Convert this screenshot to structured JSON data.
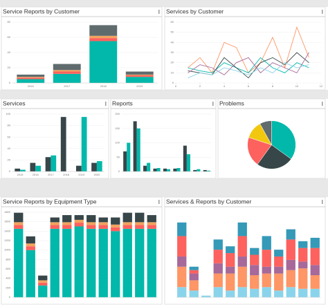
{
  "panels": [
    {
      "title": "Service Reports by Customer",
      "chart": {
        "type": "stacked_bar",
        "categories": [
          "2016",
          "2017",
          "2018",
          "2019"
        ],
        "ylim": [
          0,
          80
        ],
        "yticks": [
          0,
          20,
          40,
          60,
          80
        ],
        "series": [
          {
            "color": "#01b8aa",
            "values": [
              5,
              12,
              55,
              8
            ]
          },
          {
            "color": "#fd625e",
            "values": [
              2,
              3,
              4,
              2
            ]
          },
          {
            "color": "#f2a35e",
            "values": [
              1,
              2,
              3,
              1
            ]
          },
          {
            "color": "#5f6b6d",
            "values": [
              3,
              8,
              14,
              4
            ]
          }
        ]
      }
    },
    {
      "title": "Services by Customer",
      "chart": {
        "type": "line",
        "x": [
          1,
          2,
          3,
          4,
          5,
          6,
          7,
          8,
          9,
          10,
          11
        ],
        "xlim": [
          0,
          12
        ],
        "xticks": [
          0,
          2,
          4,
          6,
          8,
          10,
          12
        ],
        "ylim": [
          0,
          60
        ],
        "yticks": [
          0,
          10,
          20,
          30,
          40,
          50,
          60
        ],
        "series": [
          {
            "color": "#fe9666",
            "values": [
              15,
              25,
              10,
              40,
              35,
              10,
              20,
              45,
              15,
              55,
              25
            ]
          },
          {
            "color": "#01b8aa",
            "values": [
              15,
              12,
              10,
              20,
              15,
              10,
              25,
              15,
              10,
              20,
              15
            ]
          },
          {
            "color": "#374649",
            "values": [
              12,
              10,
              8,
              25,
              15,
              5,
              20,
              25,
              18,
              30,
              20
            ]
          },
          {
            "color": "#a66999",
            "values": [
              10,
              18,
              15,
              8,
              20,
              25,
              10,
              20,
              15,
              10,
              30
            ]
          },
          {
            "color": "#8ad4eb",
            "values": [
              5,
              10,
              8,
              15,
              12,
              8,
              15,
              10,
              20,
              15,
              18
            ]
          }
        ]
      }
    },
    {
      "title": "Services",
      "chart": {
        "type": "grouped_bar",
        "categories": [
          "2015",
          "2016",
          "2017",
          "2018",
          "2019",
          "2020"
        ],
        "ylim": [
          0,
          100
        ],
        "yticks": [
          0,
          20,
          40,
          60,
          80,
          100
        ],
        "series": [
          {
            "color": "#374649",
            "values": [
              5,
              15,
              25,
              95,
              10,
              15
            ]
          },
          {
            "color": "#01b8aa",
            "values": [
              3,
              10,
              28,
              0,
              95,
              18
            ]
          }
        ]
      }
    },
    {
      "title": "Reports",
      "chart": {
        "type": "grouped_bar",
        "categories": [
          null,
          null,
          null,
          null,
          null,
          null,
          null,
          null,
          null
        ],
        "ylim": [
          0,
          200
        ],
        "yticks": [
          0,
          50,
          100,
          150,
          200
        ],
        "series": [
          {
            "color": "#374649",
            "values": [
              70,
              175,
              20,
              10,
              10,
              10,
              90,
              5,
              5
            ]
          },
          {
            "color": "#01b8aa",
            "values": [
              100,
              150,
              30,
              12,
              8,
              12,
              60,
              8,
              3
            ]
          }
        ]
      }
    },
    {
      "title": "Problems",
      "chart": {
        "type": "pie",
        "values": [
          35,
          25,
          20,
          12,
          8
        ],
        "colors": [
          "#01b8aa",
          "#374649",
          "#fd625e",
          "#f2c80f",
          "#5f6b6d"
        ]
      }
    },
    {
      "title": "Service Reports by Equipment Type",
      "chart": {
        "type": "stacked_bar",
        "categories": [
          null,
          null,
          null,
          null,
          null,
          null,
          null,
          null,
          null,
          null,
          null,
          null
        ],
        "ylim": [
          0,
          1800
        ],
        "yticks": [
          0,
          200,
          400,
          600,
          800,
          1000,
          1200,
          1400,
          1600,
          1800
        ],
        "series": [
          {
            "color": "#01b8aa",
            "values": [
              1450,
              1000,
              250,
              1450,
              1450,
              1500,
              1450,
              1450,
              1400,
              1450,
              1450,
              1450
            ]
          },
          {
            "color": "#fd625e",
            "values": [
              80,
              80,
              60,
              80,
              80,
              80,
              80,
              80,
              80,
              80,
              80,
              80
            ]
          },
          {
            "color": "#f2a35e",
            "values": [
              60,
              60,
              50,
              60,
              60,
              60,
              60,
              60,
              60,
              60,
              60,
              60
            ]
          },
          {
            "color": "#374649",
            "values": [
              200,
              150,
              100,
              100,
              150,
              100,
              150,
              100,
              150,
              200,
              200,
              150
            ]
          }
        ]
      }
    },
    {
      "title": "Services & Reports by Customer",
      "chart": {
        "type": "stacked_bar",
        "categories": [
          null,
          null,
          null,
          null,
          null,
          null,
          null,
          null,
          null,
          null,
          null,
          null
        ],
        "ylim": [
          0,
          250
        ],
        "series": [
          {
            "color": "#8ad4eb",
            "values": [
              30,
              20,
              5,
              30,
              20,
              30,
              25,
              30,
              20,
              30,
              25,
              25
            ]
          },
          {
            "color": "#fe9666",
            "values": [
              60,
              30,
              0,
              40,
              50,
              60,
              40,
              40,
              50,
              50,
              60,
              40
            ]
          },
          {
            "color": "#a66999",
            "values": [
              30,
              20,
              0,
              30,
              20,
              30,
              30,
              20,
              20,
              30,
              20,
              30
            ]
          },
          {
            "color": "#fd625e",
            "values": [
              60,
              10,
              0,
              40,
              40,
              60,
              30,
              50,
              30,
              60,
              40,
              50
            ]
          },
          {
            "color": "#3599b8",
            "values": [
              40,
              10,
              0,
              30,
              20,
              40,
              20,
              40,
              20,
              30,
              20,
              30
            ]
          }
        ]
      }
    }
  ]
}
